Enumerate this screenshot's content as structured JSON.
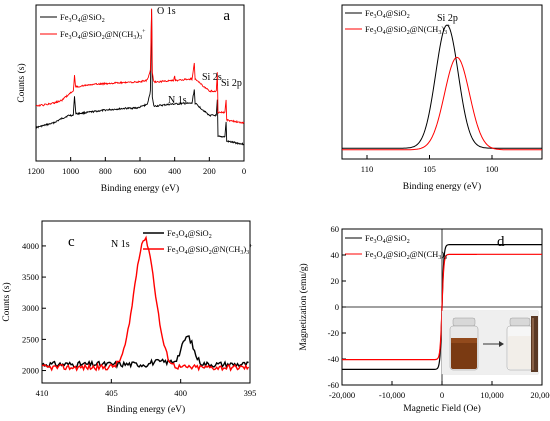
{
  "chart_data": [
    {
      "panel_label": "a",
      "type": "line",
      "xlabel": "Binding energy (eV)",
      "ylabel": "Counts (s)",
      "xlim": [
        1200,
        0
      ],
      "x_reversed": true,
      "y_ticks_shown": false,
      "xticks": [
        "1200",
        "1000",
        "800",
        "600",
        "400",
        "200",
        "0"
      ],
      "xtick_values": [
        1200,
        1000,
        800,
        600,
        400,
        200,
        0
      ],
      "legend_position": "top-left",
      "annotations": [
        {
          "text": "O 1s",
          "x": 532
        },
        {
          "text": "N 1s",
          "x": 400
        },
        {
          "text": "Si 2s",
          "x": 154
        },
        {
          "text": "Si 2p",
          "x": 103
        }
      ],
      "series": [
        {
          "name": "Fe3O4@SiO2",
          "color": "#000000",
          "points": [
            [
              1200,
              0.22
            ],
            [
              1100,
              0.25
            ],
            [
              1050,
              0.28
            ],
            [
              1010,
              0.3
            ],
            [
              985,
              0.3
            ],
            [
              978,
              0.43
            ],
            [
              970,
              0.31
            ],
            [
              900,
              0.32
            ],
            [
              800,
              0.335
            ],
            [
              700,
              0.345
            ],
            [
              610,
              0.35
            ],
            [
              565,
              0.37
            ],
            [
              555,
              0.38
            ],
            [
              540,
              0.46
            ],
            [
              533,
              1.0
            ],
            [
              529,
              0.42
            ],
            [
              520,
              0.36
            ],
            [
              450,
              0.37
            ],
            [
              402,
              0.375
            ],
            [
              398,
              0.375
            ],
            [
              300,
              0.38
            ],
            [
              287,
              0.47
            ],
            [
              282,
              0.38
            ],
            [
              200,
              0.3
            ],
            [
              160,
              0.3
            ],
            [
              154,
              0.4
            ],
            [
              150,
              0.16
            ],
            [
              110,
              0.16
            ],
            [
              103,
              0.26
            ],
            [
              100,
              0.13
            ],
            [
              50,
              0.12
            ],
            [
              0,
              0.11
            ]
          ]
        },
        {
          "name": "Fe3O4@SiO2@N(CH3)3+",
          "color": "#ff0000",
          "points": [
            [
              1200,
              0.36
            ],
            [
              1100,
              0.38
            ],
            [
              1050,
              0.4
            ],
            [
              1010,
              0.44
            ],
            [
              985,
              0.46
            ],
            [
              978,
              0.56
            ],
            [
              972,
              0.49
            ],
            [
              960,
              0.49
            ],
            [
              900,
              0.5
            ],
            [
              800,
              0.51
            ],
            [
              700,
              0.515
            ],
            [
              610,
              0.52
            ],
            [
              565,
              0.53
            ],
            [
              555,
              0.54
            ],
            [
              540,
              0.6
            ],
            [
              533,
              1.0
            ],
            [
              529,
              0.58
            ],
            [
              520,
              0.52
            ],
            [
              450,
              0.525
            ],
            [
              405,
              0.53
            ],
            [
              400,
              0.56
            ],
            [
              396,
              0.53
            ],
            [
              300,
              0.54
            ],
            [
              287,
              0.64
            ],
            [
              282,
              0.54
            ],
            [
              200,
              0.46
            ],
            [
              160,
              0.46
            ],
            [
              154,
              0.58
            ],
            [
              150,
              0.32
            ],
            [
              110,
              0.32
            ],
            [
              103,
              0.4
            ],
            [
              100,
              0.27
            ],
            [
              50,
              0.26
            ],
            [
              0,
              0.25
            ]
          ]
        }
      ]
    },
    {
      "panel_label": "",
      "type": "line",
      "xlabel": "Binding energy (eV)",
      "ylabel": "",
      "xlim": [
        112,
        96
      ],
      "x_reversed": true,
      "y_ticks_shown": false,
      "xticks": [
        "110",
        "105",
        "100"
      ],
      "xtick_values": [
        110,
        105,
        100
      ],
      "legend_position": "top-left",
      "annotations": [
        {
          "text": "Si 2p",
          "x": 103.6
        }
      ],
      "series": [
        {
          "name": "Fe3O4@SiO2",
          "color": "#000000",
          "peak_center": 103.6,
          "peak_sigma": 0.9,
          "peak_height": 0.8,
          "baseline": 0.07
        },
        {
          "name": "Fe3O4@SiO2@N(CH3)3+",
          "color": "#ff0000",
          "peak_center": 102.8,
          "peak_sigma": 1.0,
          "peak_height": 0.6,
          "baseline": 0.06
        }
      ]
    },
    {
      "panel_label": "c",
      "type": "line",
      "xlabel": "Binding energy (eV)",
      "ylabel": "Counts (s)",
      "xlim": [
        410,
        395
      ],
      "x_reversed": true,
      "ylim": [
        1800,
        4400
      ],
      "xticks": [
        "410",
        "405",
        "400",
        "395"
      ],
      "xtick_values": [
        410,
        405,
        400,
        395
      ],
      "yticks": [
        "2000",
        "2500",
        "3000",
        "3500",
        "4000"
      ],
      "ytick_values": [
        2000,
        2500,
        3000,
        3500,
        4000
      ],
      "legend_position": "top-right",
      "annotations": [
        {
          "text": "N 1s",
          "x": 402.6
        }
      ],
      "series": [
        {
          "name": "Fe3O4@SiO2",
          "color": "#000000",
          "baseline": 2100,
          "peak_center": 399.5,
          "peak_sigma": 0.4,
          "peak_height": 420
        },
        {
          "name": "Fe3O4@SiO2@N(CH3)3+",
          "color": "#ff0000",
          "baseline": 2050,
          "peak_center": 402.6,
          "peak_sigma": 0.75,
          "peak_height": 2060
        }
      ]
    },
    {
      "panel_label": "d",
      "type": "line",
      "xlabel": "Magnetic Field (Oe)",
      "ylabel": "Magnetization (emu/g)",
      "xlim": [
        -20000,
        20000
      ],
      "ylim": [
        -60,
        60
      ],
      "xticks": [
        "-20,000",
        "-10,000",
        "0",
        "10,000",
        "20,000"
      ],
      "xtick_values": [
        -20000,
        -10000,
        0,
        10000,
        20000
      ],
      "yticks": [
        "-60",
        "-40",
        "-20",
        "0",
        "20",
        "40",
        "60"
      ],
      "ytick_values": [
        -60,
        -40,
        -20,
        0,
        20,
        40,
        60
      ],
      "legend_position": "top-left",
      "inset": "photo of two vials with arrow",
      "series": [
        {
          "name": "Fe3O4@SiO2",
          "color": "#000000",
          "saturation": 48,
          "field_scale": 380
        },
        {
          "name": "Fe3O4@SiO2@N(CH3)3+",
          "color": "#ff0000",
          "saturation": 40.5,
          "field_scale": 380
        }
      ]
    }
  ],
  "legend": {
    "s1_base": "Fe",
    "s1_s1": "3",
    "s1_mid": "O",
    "s1_s2": "4",
    "s1_tail": "@SiO",
    "s1_s3": "2",
    "s2_tail": "@SiO",
    "s2_s3": "2",
    "s2_mid2": "@N(CH",
    "s2_s4": "3",
    "s2_end": ")",
    "s2_s5": "3",
    "s2_plus": "+"
  }
}
